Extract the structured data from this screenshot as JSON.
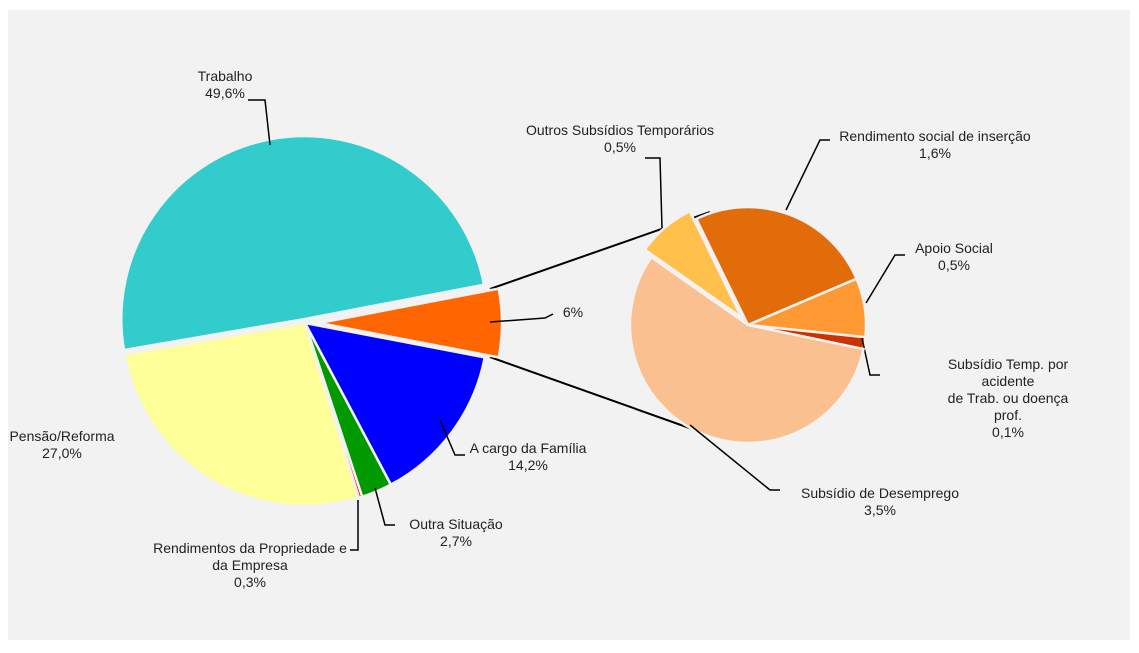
{
  "chart_data": [
    {
      "type": "pie",
      "categories": [
        "Trabalho",
        null,
        "A cargo da Família",
        "Outra Situação",
        "Rendimentos da Propriedade e\nda Empresa",
        "Pensão/Reforma"
      ],
      "values": [
        49.6,
        6,
        14.2,
        2.7,
        0.3,
        27.0
      ],
      "value_labels": [
        "49,6%",
        "6%",
        "14,2%",
        "2,7%",
        "0,3%",
        "27,0%"
      ],
      "colors": [
        "#33cccc",
        "#ff6600",
        "#0000ff",
        "#009900",
        "#ff0000",
        "#ffff99"
      ]
    },
    {
      "type": "pie",
      "categories": [
        "Outros Subsídios Temporários",
        "Rendimento social de inserção",
        "Apoio Social",
        "Subsídio Temp. por acidente\nde Trab.  ou doença prof.",
        "Subsídio de Desemprego"
      ],
      "values": [
        0.5,
        1.6,
        0.5,
        0.1,
        3.5
      ],
      "value_labels": [
        "0,5%",
        "1,6%",
        "0,5%",
        "0,1%",
        "3,5%"
      ],
      "colors": [
        "#ffc04c",
        "#e36c0a",
        "#ff9933",
        "#cc3300",
        "#fac090"
      ]
    }
  ]
}
